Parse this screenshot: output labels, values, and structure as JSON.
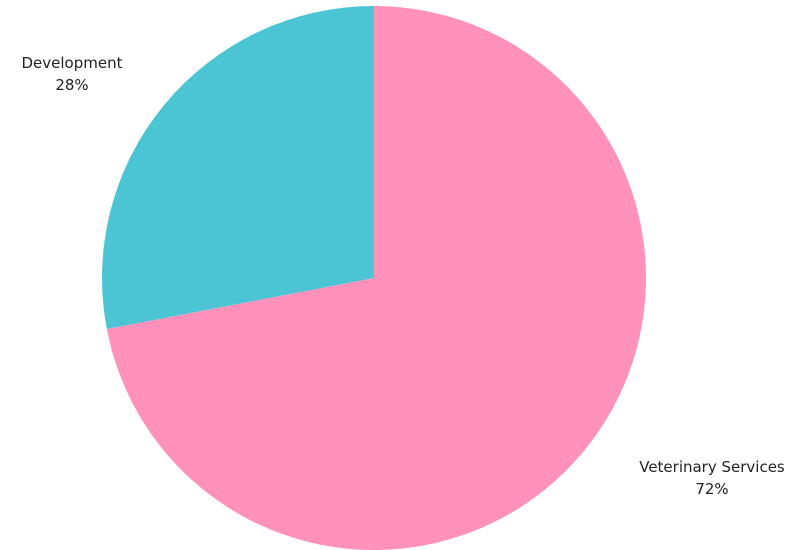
{
  "chart_data": {
    "type": "pie",
    "slices": [
      {
        "label": "Veterinary Services",
        "value": 72,
        "display": "72%",
        "color": "#FF91BB"
      },
      {
        "label": "Development",
        "value": 28,
        "display": "28%",
        "color": "#4BC5D4"
      }
    ],
    "start_angle": "12 o'clock",
    "direction": "clockwise",
    "legend": "none"
  }
}
